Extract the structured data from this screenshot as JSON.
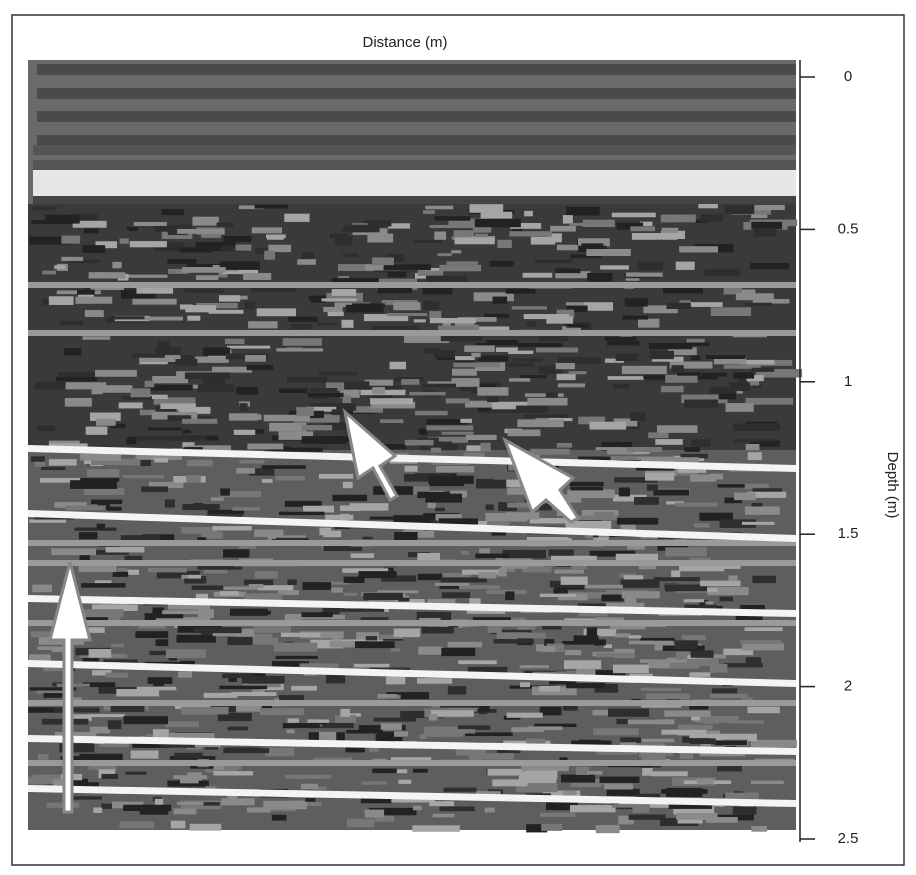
{
  "figure": {
    "x_label": "Distance (m)",
    "y_label": "Depth (m)",
    "ylim": [
      0,
      2.5
    ],
    "yticks": [
      0,
      0.5,
      1,
      1.5,
      2,
      2.5
    ]
  }
}
